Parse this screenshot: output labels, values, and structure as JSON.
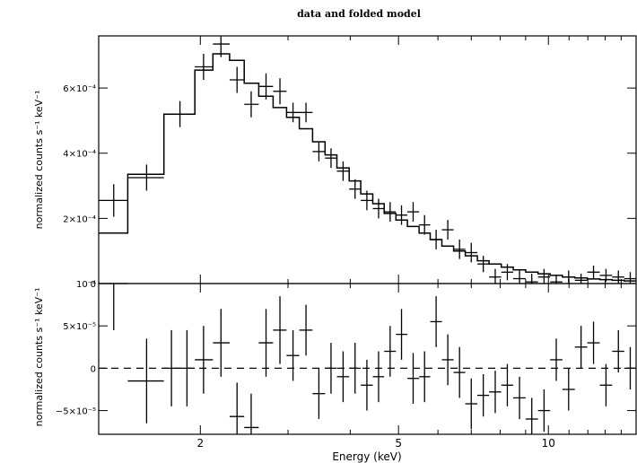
{
  "chart_data": [
    {
      "type": "line",
      "title": "data and folded model",
      "xlabel": "",
      "ylabel": "normalized counts s⁻¹ keV⁻¹",
      "x_scale": "log",
      "xlim": [
        1.25,
        15
      ],
      "ylim": [
        0,
        0.00076
      ],
      "yticks": [
        {
          "value": 0,
          "label": "0"
        },
        {
          "value": 0.0002,
          "label": "2×10⁻⁴"
        },
        {
          "value": 0.0004,
          "label": "4×10⁻⁴"
        },
        {
          "value": 0.0006,
          "label": "6×10⁻⁴"
        }
      ],
      "data_points": [
        {
          "x": 1.34,
          "xlo": 1.25,
          "xhi": 1.43,
          "y": 0.000255,
          "err": 5e-05
        },
        {
          "x": 1.56,
          "xlo": 1.43,
          "xhi": 1.69,
          "y": 0.000325,
          "err": 4e-05
        },
        {
          "x": 1.82,
          "xlo": 1.69,
          "xhi": 1.95,
          "y": 0.00052,
          "err": 4e-05
        },
        {
          "x": 2.03,
          "xlo": 1.95,
          "xhi": 2.12,
          "y": 0.000665,
          "err": 4e-05
        },
        {
          "x": 2.2,
          "xlo": 2.12,
          "xhi": 2.29,
          "y": 0.000735,
          "err": 4e-05
        },
        {
          "x": 2.37,
          "xlo": 2.29,
          "xhi": 2.45,
          "y": 0.000625,
          "err": 4e-05
        },
        {
          "x": 2.53,
          "xlo": 2.45,
          "xhi": 2.62,
          "y": 0.00055,
          "err": 4e-05
        },
        {
          "x": 2.71,
          "xlo": 2.62,
          "xhi": 2.8,
          "y": 0.000605,
          "err": 4e-05
        },
        {
          "x": 2.89,
          "xlo": 2.8,
          "xhi": 2.98,
          "y": 0.00059,
          "err": 4e-05
        },
        {
          "x": 3.07,
          "xlo": 2.98,
          "xhi": 3.16,
          "y": 0.000525,
          "err": 3e-05
        },
        {
          "x": 3.26,
          "xlo": 3.16,
          "xhi": 3.36,
          "y": 0.000525,
          "err": 3e-05
        },
        {
          "x": 3.46,
          "xlo": 3.36,
          "xhi": 3.56,
          "y": 0.000405,
          "err": 3e-05
        },
        {
          "x": 3.66,
          "xlo": 3.56,
          "xhi": 3.76,
          "y": 0.000385,
          "err": 3e-05
        },
        {
          "x": 3.87,
          "xlo": 3.76,
          "xhi": 3.98,
          "y": 0.000345,
          "err": 3e-05
        },
        {
          "x": 4.09,
          "xlo": 3.98,
          "xhi": 4.2,
          "y": 0.00029,
          "err": 3e-05
        },
        {
          "x": 4.32,
          "xlo": 4.2,
          "xhi": 4.44,
          "y": 0.000255,
          "err": 3e-05
        },
        {
          "x": 4.56,
          "xlo": 4.44,
          "xhi": 4.68,
          "y": 0.00023,
          "err": 3e-05
        },
        {
          "x": 4.81,
          "xlo": 4.68,
          "xhi": 4.94,
          "y": 0.00022,
          "err": 3e-05
        },
        {
          "x": 5.07,
          "xlo": 4.94,
          "xhi": 5.21,
          "y": 0.00021,
          "err": 3e-05
        },
        {
          "x": 5.35,
          "xlo": 5.21,
          "xhi": 5.5,
          "y": 0.00022,
          "err": 3e-05
        },
        {
          "x": 5.64,
          "xlo": 5.5,
          "xhi": 5.79,
          "y": 0.00018,
          "err": 3e-05
        },
        {
          "x": 5.95,
          "xlo": 5.79,
          "xhi": 6.11,
          "y": 0.000135,
          "err": 3e-05
        },
        {
          "x": 6.28,
          "xlo": 6.11,
          "xhi": 6.45,
          "y": 0.000165,
          "err": 3e-05
        },
        {
          "x": 6.63,
          "xlo": 6.45,
          "xhi": 6.81,
          "y": 0.000105,
          "err": 3e-05
        },
        {
          "x": 7.0,
          "xlo": 6.81,
          "xhi": 7.2,
          "y": 9.5e-05,
          "err": 3e-05
        },
        {
          "x": 7.4,
          "xlo": 7.2,
          "xhi": 7.6,
          "y": 6e-05,
          "err": 2.5e-05
        },
        {
          "x": 7.82,
          "xlo": 7.6,
          "xhi": 8.04,
          "y": 2e-05,
          "err": 2.5e-05
        },
        {
          "x": 8.27,
          "xlo": 8.04,
          "xhi": 8.5,
          "y": 3.5e-05,
          "err": 2.5e-05
        },
        {
          "x": 8.75,
          "xlo": 8.5,
          "xhi": 9.0,
          "y": 1.5e-05,
          "err": 2.5e-05
        },
        {
          "x": 9.26,
          "xlo": 9.0,
          "xhi": 9.53,
          "y": 5e-06,
          "err": 2.5e-05
        },
        {
          "x": 9.8,
          "xlo": 9.53,
          "xhi": 10.08,
          "y": 2e-05,
          "err": 2.5e-05
        },
        {
          "x": 10.37,
          "xlo": 10.08,
          "xhi": 10.67,
          "y": 5e-06,
          "err": 2e-05
        },
        {
          "x": 10.98,
          "xlo": 10.67,
          "xhi": 11.3,
          "y": 2e-05,
          "err": 2e-05
        },
        {
          "x": 11.63,
          "xlo": 11.3,
          "xhi": 11.97,
          "y": 1e-05,
          "err": 2e-05
        },
        {
          "x": 12.32,
          "xlo": 11.97,
          "xhi": 12.68,
          "y": 3.5e-05,
          "err": 2e-05
        },
        {
          "x": 13.05,
          "xlo": 12.68,
          "xhi": 13.43,
          "y": 2.5e-05,
          "err": 2e-05
        },
        {
          "x": 13.82,
          "xlo": 13.43,
          "xhi": 14.2,
          "y": 2e-05,
          "err": 2e-05
        },
        {
          "x": 14.6,
          "xlo": 14.2,
          "xhi": 15.0,
          "y": 1.5e-05,
          "err": 2e-05
        }
      ],
      "model_steps": [
        {
          "xlo": 1.25,
          "xhi": 1.43,
          "y": 0.000155
        },
        {
          "xlo": 1.43,
          "xhi": 1.69,
          "y": 0.000335
        },
        {
          "xlo": 1.69,
          "xhi": 1.95,
          "y": 0.00052
        },
        {
          "xlo": 1.95,
          "xhi": 2.12,
          "y": 0.000655
        },
        {
          "xlo": 2.12,
          "xhi": 2.29,
          "y": 0.000705
        },
        {
          "xlo": 2.29,
          "xhi": 2.45,
          "y": 0.000685
        },
        {
          "xlo": 2.45,
          "xhi": 2.62,
          "y": 0.000615
        },
        {
          "xlo": 2.62,
          "xhi": 2.8,
          "y": 0.000575
        },
        {
          "xlo": 2.8,
          "xhi": 2.98,
          "y": 0.00054
        },
        {
          "xlo": 2.98,
          "xhi": 3.16,
          "y": 0.00051
        },
        {
          "xlo": 3.16,
          "xhi": 3.36,
          "y": 0.000475
        },
        {
          "xlo": 3.36,
          "xhi": 3.56,
          "y": 0.000435
        },
        {
          "xlo": 3.56,
          "xhi": 3.76,
          "y": 0.000395
        },
        {
          "xlo": 3.76,
          "xhi": 3.98,
          "y": 0.000355
        },
        {
          "xlo": 3.98,
          "xhi": 4.2,
          "y": 0.000315
        },
        {
          "xlo": 4.2,
          "xhi": 4.44,
          "y": 0.000275
        },
        {
          "xlo": 4.44,
          "xhi": 4.68,
          "y": 0.000245
        },
        {
          "xlo": 4.68,
          "xhi": 4.94,
          "y": 0.000215
        },
        {
          "xlo": 4.94,
          "xhi": 5.21,
          "y": 0.000195
        },
        {
          "xlo": 5.21,
          "xhi": 5.5,
          "y": 0.000175
        },
        {
          "xlo": 5.5,
          "xhi": 5.79,
          "y": 0.000155
        },
        {
          "xlo": 5.79,
          "xhi": 6.11,
          "y": 0.000135
        },
        {
          "xlo": 6.11,
          "xhi": 6.45,
          "y": 0.000115
        },
        {
          "xlo": 6.45,
          "xhi": 6.81,
          "y": 0.0001
        },
        {
          "xlo": 6.81,
          "xhi": 7.2,
          "y": 8.5e-05
        },
        {
          "xlo": 7.2,
          "xhi": 7.6,
          "y": 7e-05
        },
        {
          "xlo": 7.6,
          "xhi": 8.04,
          "y": 6e-05
        },
        {
          "xlo": 8.04,
          "xhi": 8.5,
          "y": 5e-05
        },
        {
          "xlo": 8.5,
          "xhi": 9.0,
          "y": 4.2e-05
        },
        {
          "xlo": 9.0,
          "xhi": 9.53,
          "y": 3.5e-05
        },
        {
          "xlo": 9.53,
          "xhi": 10.08,
          "y": 3e-05
        },
        {
          "xlo": 10.08,
          "xhi": 10.67,
          "y": 2.5e-05
        },
        {
          "xlo": 10.67,
          "xhi": 11.3,
          "y": 2e-05
        },
        {
          "xlo": 11.3,
          "xhi": 11.97,
          "y": 1.7e-05
        },
        {
          "xlo": 11.97,
          "xhi": 12.68,
          "y": 1.4e-05
        },
        {
          "xlo": 12.68,
          "xhi": 13.43,
          "y": 1.2e-05
        },
        {
          "xlo": 13.43,
          "xhi": 14.2,
          "y": 1e-05
        },
        {
          "xlo": 14.2,
          "xhi": 15.0,
          "y": 8e-06
        }
      ]
    },
    {
      "type": "scatter",
      "xlabel": "Energy (keV)",
      "ylabel": "normalized counts s⁻¹ keV⁻¹",
      "x_scale": "log",
      "xlim": [
        1.25,
        15
      ],
      "ylim": [
        -7.8e-05,
        0.0001
      ],
      "xticks": [
        {
          "value": 2,
          "label": "2"
        },
        {
          "value": 5,
          "label": "5"
        },
        {
          "value": 10,
          "label": "10"
        }
      ],
      "yticks": [
        {
          "value": -5e-05,
          "label": "−5×10⁻⁵"
        },
        {
          "value": 0,
          "label": "0"
        },
        {
          "value": 5e-05,
          "label": "5×10⁻⁵"
        },
        {
          "value": 0.0001,
          "label": "10⁻⁴"
        }
      ],
      "zero_line": "dashed",
      "residuals": [
        {
          "x": 1.34,
          "xlo": 1.25,
          "xhi": 1.43,
          "y": 0.0001,
          "err": 5.5e-05
        },
        {
          "x": 1.56,
          "xlo": 1.43,
          "xhi": 1.69,
          "y": -1.5e-05,
          "err": 5e-05
        },
        {
          "x": 1.75,
          "xlo": 1.69,
          "xhi": 1.82,
          "y": 0.0,
          "err": 4.5e-05
        },
        {
          "x": 1.88,
          "xlo": 1.82,
          "xhi": 1.95,
          "y": 0.0,
          "err": 4.5e-05
        },
        {
          "x": 2.03,
          "xlo": 1.95,
          "xhi": 2.12,
          "y": 1e-05,
          "err": 4e-05
        },
        {
          "x": 2.2,
          "xlo": 2.12,
          "xhi": 2.29,
          "y": 3e-05,
          "err": 4e-05
        },
        {
          "x": 2.37,
          "xlo": 2.29,
          "xhi": 2.45,
          "y": -5.7e-05,
          "err": 4e-05
        },
        {
          "x": 2.53,
          "xlo": 2.45,
          "xhi": 2.62,
          "y": -7e-05,
          "err": 4e-05
        },
        {
          "x": 2.71,
          "xlo": 2.62,
          "xhi": 2.8,
          "y": 3e-05,
          "err": 4e-05
        },
        {
          "x": 2.89,
          "xlo": 2.8,
          "xhi": 2.98,
          "y": 4.5e-05,
          "err": 4e-05
        },
        {
          "x": 3.07,
          "xlo": 2.98,
          "xhi": 3.16,
          "y": 1.5e-05,
          "err": 3e-05
        },
        {
          "x": 3.26,
          "xlo": 3.16,
          "xhi": 3.36,
          "y": 4.5e-05,
          "err": 3e-05
        },
        {
          "x": 3.46,
          "xlo": 3.36,
          "xhi": 3.56,
          "y": -3e-05,
          "err": 3e-05
        },
        {
          "x": 3.66,
          "xlo": 3.56,
          "xhi": 3.76,
          "y": 0.0,
          "err": 3e-05
        },
        {
          "x": 3.87,
          "xlo": 3.76,
          "xhi": 3.98,
          "y": -1e-05,
          "err": 3e-05
        },
        {
          "x": 4.09,
          "xlo": 3.98,
          "xhi": 4.2,
          "y": 0.0,
          "err": 3e-05
        },
        {
          "x": 4.32,
          "xlo": 4.2,
          "xhi": 4.44,
          "y": -2e-05,
          "err": 3e-05
        },
        {
          "x": 4.56,
          "xlo": 4.44,
          "xhi": 4.68,
          "y": -1e-05,
          "err": 3e-05
        },
        {
          "x": 4.81,
          "xlo": 4.68,
          "xhi": 4.94,
          "y": 2e-05,
          "err": 3e-05
        },
        {
          "x": 5.07,
          "xlo": 4.94,
          "xhi": 5.21,
          "y": 4e-05,
          "err": 3e-05
        },
        {
          "x": 5.35,
          "xlo": 5.21,
          "xhi": 5.5,
          "y": -1.2e-05,
          "err": 3e-05
        },
        {
          "x": 5.64,
          "xlo": 5.5,
          "xhi": 5.79,
          "y": -1e-05,
          "err": 3e-05
        },
        {
          "x": 5.95,
          "xlo": 5.79,
          "xhi": 6.11,
          "y": 5.5e-05,
          "err": 3e-05
        },
        {
          "x": 6.28,
          "xlo": 6.11,
          "xhi": 6.45,
          "y": 1e-05,
          "err": 3e-05
        },
        {
          "x": 6.63,
          "xlo": 6.45,
          "xhi": 6.81,
          "y": -5e-06,
          "err": 3e-05
        },
        {
          "x": 7.0,
          "xlo": 6.81,
          "xhi": 7.2,
          "y": -4.2e-05,
          "err": 3e-05
        },
        {
          "x": 7.4,
          "xlo": 7.2,
          "xhi": 7.6,
          "y": -3.2e-05,
          "err": 2.5e-05
        },
        {
          "x": 7.82,
          "xlo": 7.6,
          "xhi": 8.04,
          "y": -2.8e-05,
          "err": 2.5e-05
        },
        {
          "x": 8.27,
          "xlo": 8.04,
          "xhi": 8.5,
          "y": -2e-05,
          "err": 2.5e-05
        },
        {
          "x": 8.75,
          "xlo": 8.5,
          "xhi": 9.0,
          "y": -3.5e-05,
          "err": 2.5e-05
        },
        {
          "x": 9.26,
          "xlo": 9.0,
          "xhi": 9.53,
          "y": -6e-05,
          "err": 2.5e-05
        },
        {
          "x": 9.8,
          "xlo": 9.53,
          "xhi": 10.08,
          "y": -5e-05,
          "err": 2.5e-05
        },
        {
          "x": 10.37,
          "xlo": 10.08,
          "xhi": 10.67,
          "y": 1e-05,
          "err": 2.5e-05
        },
        {
          "x": 10.98,
          "xlo": 10.67,
          "xhi": 11.3,
          "y": -2.5e-05,
          "err": 2.5e-05
        },
        {
          "x": 11.63,
          "xlo": 11.3,
          "xhi": 11.97,
          "y": 2.5e-05,
          "err": 2.5e-05
        },
        {
          "x": 12.32,
          "xlo": 11.97,
          "xhi": 12.68,
          "y": 3e-05,
          "err": 2.5e-05
        },
        {
          "x": 13.05,
          "xlo": 12.68,
          "xhi": 13.43,
          "y": -2e-05,
          "err": 2.5e-05
        },
        {
          "x": 13.82,
          "xlo": 13.43,
          "xhi": 14.2,
          "y": 2e-05,
          "err": 2.5e-05
        },
        {
          "x": 14.6,
          "xlo": 14.2,
          "xhi": 15.0,
          "y": 0.0,
          "err": 2.5e-05
        }
      ]
    }
  ]
}
